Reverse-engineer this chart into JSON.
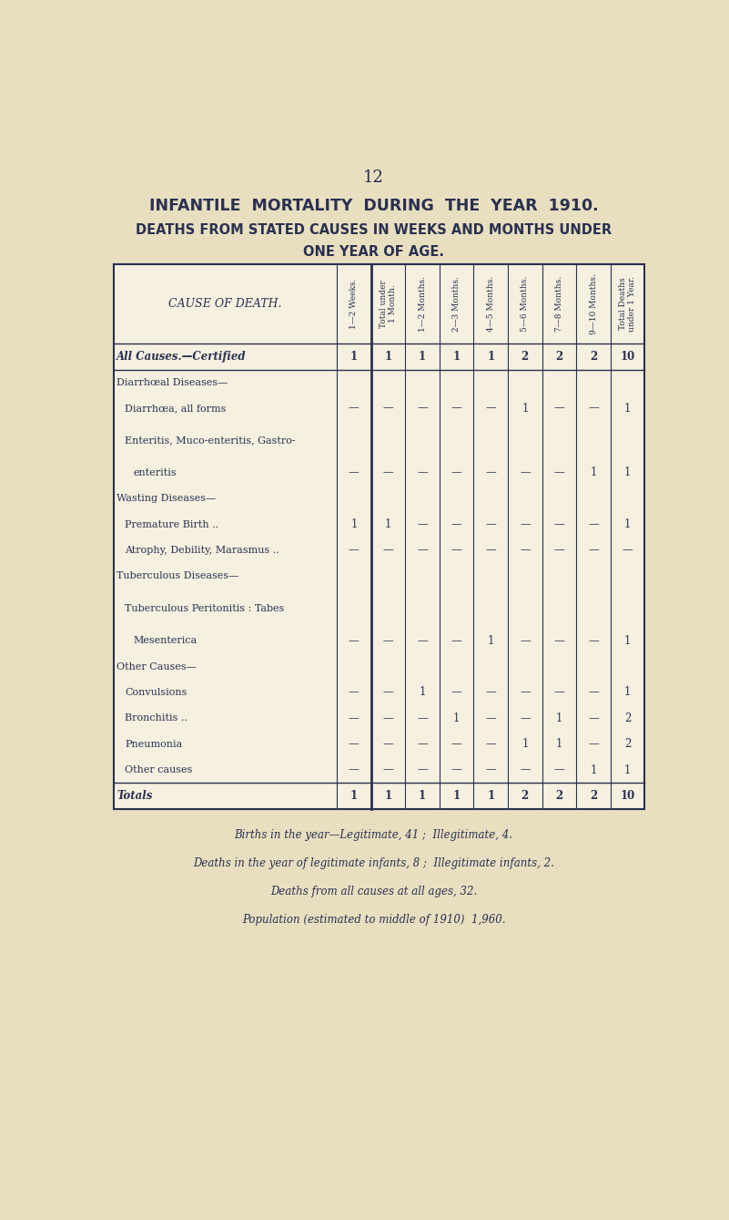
{
  "page_number": "12",
  "title1": "INFANTILE  MORTALITY  DURING  THE  YEAR  1910.",
  "title2": "DEATHS FROM STATED CAUSES IN WEEKS AND MONTHS UNDER",
  "title3": "ONE YEAR OF AGE.",
  "bg_color": "#e8dfc0",
  "table_bg": "#f5f0e0",
  "text_color": "#2a3050",
  "col_headers": [
    "1—2 Weeks.",
    "Total under\n1 Month.",
    "1—2 Months.",
    "2—3 Months.",
    "4—5 Months.",
    "5—6 Months.",
    "7—8 Months.",
    "9—10 Months.",
    "Total Deaths\nunder 1 Year."
  ],
  "rows": [
    {
      "cause": "All Causes.—Certified",
      "indent": 0,
      "bold": true,
      "italic": true,
      "values": [
        "1",
        "1",
        "1",
        "1",
        "1",
        "2",
        "2",
        "2",
        "10"
      ]
    },
    {
      "cause": "Diarrhœal Diseases—",
      "indent": 0,
      "bold": false,
      "italic": false,
      "values": [
        "",
        "",
        "",
        "",
        "",
        "",
        "",
        "",
        ""
      ]
    },
    {
      "cause": "Diarrhœa, all forms",
      "indent": 1,
      "bold": false,
      "italic": false,
      "values": [
        "—",
        "—",
        "—",
        "—",
        "—",
        "1",
        "—",
        "—",
        "1"
      ]
    },
    {
      "cause": "Enteritis, Muco-enteritis, Gastro-",
      "indent": 1,
      "bold": false,
      "italic": false,
      "values": [
        "",
        "",
        "",
        "",
        "",
        "",
        "",
        "",
        ""
      ]
    },
    {
      "cause": "enteritis",
      "indent": 2,
      "bold": false,
      "italic": false,
      "values": [
        "—",
        "—",
        "—",
        "—",
        "—",
        "—",
        "—",
        "1",
        "1"
      ]
    },
    {
      "cause": "Wasting Diseases—",
      "indent": 0,
      "bold": false,
      "italic": false,
      "values": [
        "",
        "",
        "",
        "",
        "",
        "",
        "",
        "",
        ""
      ]
    },
    {
      "cause": "Premature Birth ..",
      "indent": 1,
      "bold": false,
      "italic": false,
      "values": [
        "1",
        "1",
        "—",
        "—",
        "—",
        "—",
        "—",
        "—",
        "1"
      ]
    },
    {
      "cause": "Atrophy, Debility, Marasmus ..",
      "indent": 1,
      "bold": false,
      "italic": false,
      "values": [
        "—",
        "—",
        "—",
        "—",
        "—",
        "—",
        "—",
        "—",
        "—"
      ]
    },
    {
      "cause": "Tuberculous Diseases—",
      "indent": 0,
      "bold": false,
      "italic": false,
      "values": [
        "",
        "",
        "",
        "",
        "",
        "",
        "",
        "",
        ""
      ]
    },
    {
      "cause": "Tuberculous Peritonitis : Tabes",
      "indent": 1,
      "bold": false,
      "italic": false,
      "values": [
        "",
        "",
        "",
        "",
        "",
        "",
        "",
        "",
        ""
      ]
    },
    {
      "cause": "Mesenterica",
      "indent": 2,
      "bold": false,
      "italic": false,
      "values": [
        "—",
        "—",
        "—",
        "—",
        "1",
        "—",
        "—",
        "—",
        "1"
      ]
    },
    {
      "cause": "Other Causes—",
      "indent": 0,
      "bold": false,
      "italic": false,
      "values": [
        "",
        "",
        "",
        "",
        "",
        "",
        "",
        "",
        ""
      ]
    },
    {
      "cause": "Convulsions",
      "indent": 1,
      "bold": false,
      "italic": false,
      "values": [
        "—",
        "—",
        "1",
        "—",
        "—",
        "—",
        "—",
        "—",
        "1"
      ]
    },
    {
      "cause": "Bronchitis ..",
      "indent": 1,
      "bold": false,
      "italic": false,
      "values": [
        "—",
        "—",
        "—",
        "1",
        "—",
        "—",
        "1",
        "—",
        "2"
      ]
    },
    {
      "cause": "Pneumonia",
      "indent": 1,
      "bold": false,
      "italic": false,
      "values": [
        "—",
        "—",
        "—",
        "—",
        "—",
        "1",
        "1",
        "—",
        "2"
      ]
    },
    {
      "cause": "Other causes",
      "indent": 1,
      "bold": false,
      "italic": false,
      "values": [
        "—",
        "—",
        "—",
        "—",
        "—",
        "—",
        "—",
        "1",
        "1"
      ]
    },
    {
      "cause": "Totals",
      "indent": 0,
      "bold": true,
      "italic": true,
      "values": [
        "1",
        "1",
        "1",
        "1",
        "1",
        "2",
        "2",
        "2",
        "10"
      ]
    }
  ],
  "footer_lines": [
    "Births in the year—Legitimate, 41 ;  Illegitimate, 4.",
    "Deaths in the year of legitimate infants, 8 ;  Illegitimate infants, 2.",
    "Deaths from all causes at all ages, 32.",
    "Population (estimated to middle of 1910)  1,960."
  ]
}
